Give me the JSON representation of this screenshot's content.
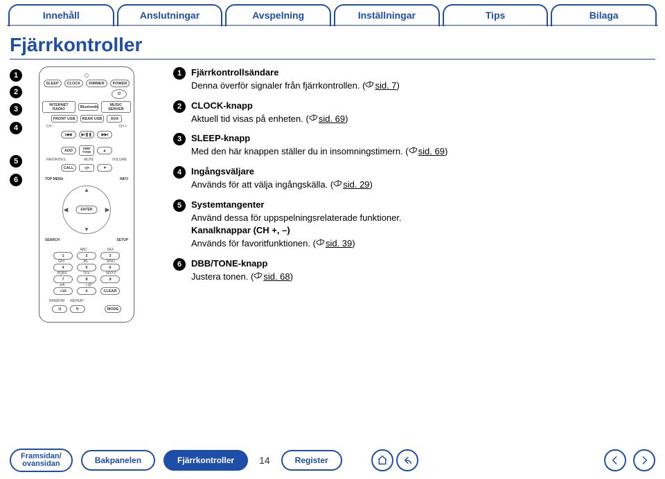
{
  "colors": {
    "brand": "#1e4ea8"
  },
  "tabs": [
    "Innehåll",
    "Anslutningar",
    "Avspelning",
    "Inställningar",
    "Tips",
    "Bilaga"
  ],
  "section_title": "Fjärrkontroller",
  "left_markers": [
    "1",
    "2",
    "3",
    "4",
    "5",
    "6"
  ],
  "remote": {
    "row1": [
      "SLEEP",
      "CLOCK",
      "DIMMER",
      "POWER"
    ],
    "row2": [
      "INTERNET RADIO",
      "Bluetooth",
      "MUSIC SERVER"
    ],
    "row3": [
      "FRONT USB",
      "REAR USB",
      "AUX"
    ],
    "ch_row_labels": [
      "CH -",
      "CH +"
    ],
    "ch_row": [
      "|◀◀",
      "▶/❚❚",
      "▶▶|"
    ],
    "add_row": [
      "ADD",
      "DBB/ TONE",
      "▲"
    ],
    "fav_row_labels": [
      "FAVORITES",
      "MUTE",
      "VOLUME"
    ],
    "fav_row": [
      "CALL",
      "◁×",
      "▼"
    ],
    "dpad": {
      "top_left": "TOP MENU",
      "top_right": "INFO",
      "enter": "ENTER",
      "bottom_left": "SEARCH",
      "bottom_right": "SETUP"
    },
    "kp_labels": [
      ".",
      "ABC",
      "DEF",
      "GHI",
      "JKL",
      "MNO",
      "PQRS",
      "TUV",
      "WXYZ",
      "a/A",
      "(-@*",
      "~"
    ],
    "keypad": [
      "1",
      "2",
      "3",
      "4",
      "5",
      "6",
      "7",
      "8",
      "9",
      "+10",
      "0",
      "CLEAR"
    ],
    "repeat_row_labels": [
      "RANDOM",
      "REPEAT",
      ""
    ],
    "repeat_row": [
      "⤨",
      "↻",
      "MODE"
    ]
  },
  "items": [
    {
      "n": "1",
      "heading": "Fjärrkontrollsändare",
      "text": "Denna överför signaler från fjärrkontrollen. (",
      "ref": "sid. 7",
      "tail": ")"
    },
    {
      "n": "2",
      "heading": "CLOCK-knapp",
      "text": "Aktuell tid visas på enheten. (",
      "ref": "sid. 69",
      "tail": ")"
    },
    {
      "n": "3",
      "heading": "SLEEP-knapp",
      "text": "Med den här knappen ställer du in insomningstimern. (",
      "ref": "sid. 69",
      "tail": ")"
    },
    {
      "n": "4",
      "heading": "Ingångsväljare",
      "text": "Används för att välja ingångskälla. (",
      "ref": "sid. 29",
      "tail": ")"
    },
    {
      "n": "5",
      "heading": "Systemtangenter",
      "text": "Använd dessa för uppspelningsrelaterade funktioner.",
      "extra_bold": "Kanalknappar (CH +, –)",
      "text2": "Används för favoritfunktionen. (",
      "ref2": "sid. 39",
      "tail2": ")"
    },
    {
      "n": "6",
      "heading": "DBB/TONE-knapp",
      "text": "Justera tonen. (",
      "ref": "sid. 68",
      "tail": ")"
    }
  ],
  "bottom": {
    "buttons": [
      {
        "line1": "Framsidan/",
        "line2": "ovansidan",
        "two": true
      },
      {
        "line1": "Bakpanelen"
      },
      {
        "line1": "Fjärrkontroller",
        "active": true
      },
      {
        "line1": "Register"
      }
    ],
    "page": "14"
  }
}
